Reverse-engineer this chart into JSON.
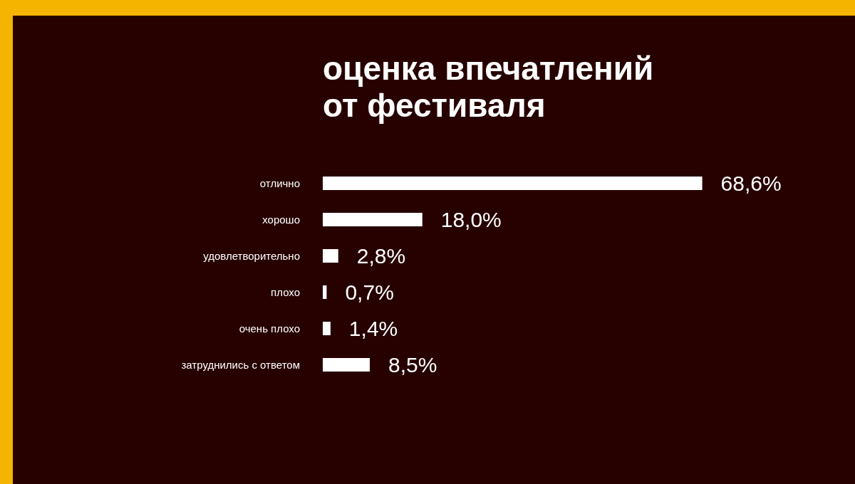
{
  "chart_data": {
    "type": "bar",
    "orientation": "horizontal",
    "title": "оценка впечатлений от фестиваля",
    "categories": [
      "отлично",
      "хорошо",
      "удовлетворительно",
      "плохо",
      "очень плохо",
      "затруднились с ответом"
    ],
    "values": [
      68.6,
      18.0,
      2.8,
      0.7,
      1.4,
      8.5
    ],
    "value_labels": [
      "68,6%",
      "18,0%",
      "2,8%",
      "0,7%",
      "1,4%",
      "8,5%"
    ],
    "color": "#ffffff"
  }
}
